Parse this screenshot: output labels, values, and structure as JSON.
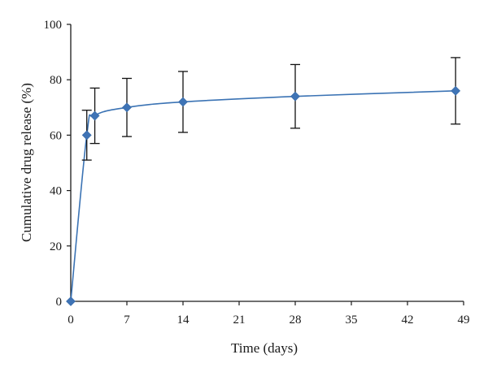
{
  "chart_data": {
    "type": "scatter",
    "xlabel": "Time (days)",
    "ylabel": "Cumulative drug release (%)",
    "xlim": [
      0,
      49
    ],
    "ylim": [
      0,
      100
    ],
    "xticks": [
      0,
      7,
      14,
      21,
      28,
      35,
      42,
      49
    ],
    "yticks": [
      0,
      20,
      40,
      60,
      80,
      100
    ],
    "grid": false,
    "legend": "none",
    "series": [
      {
        "x": [
          0,
          2,
          3,
          7,
          14,
          28,
          48
        ],
        "y": [
          0,
          60,
          67,
          70,
          72,
          74,
          76
        ],
        "error": [
          0,
          9,
          10,
          10.5,
          11,
          11.5,
          12
        ],
        "marker": "diamond",
        "color": "#3f74b6",
        "line": "smoothed"
      }
    ]
  }
}
